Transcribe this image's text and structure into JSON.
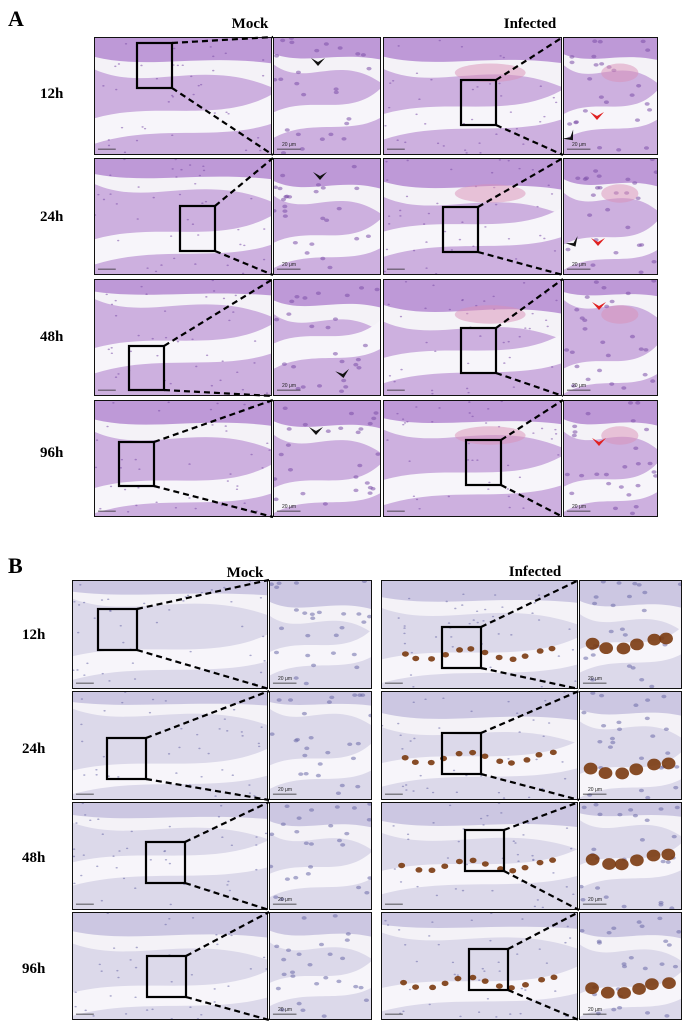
{
  "panels": [
    {
      "letter": "A",
      "stain": "he",
      "columns": [
        "Mock",
        "Infected"
      ],
      "rows": [
        "12h",
        "24h",
        "48h",
        "96h"
      ],
      "scale_label": "20 μm"
    },
    {
      "letter": "B",
      "stain": "ihc",
      "columns": [
        "Mock",
        "Infected"
      ],
      "rows": [
        "12h",
        "24h",
        "48h",
        "96h"
      ],
      "scale_label": "20 μm"
    }
  ],
  "colors": {
    "he_background": "#c9a8dc",
    "he_tissue": "#b48ad1",
    "he_dark": "#7b4fa8",
    "he_pink": "#d98fb8",
    "ihc_background": "#d9d6e8",
    "ihc_tissue": "#c4c0de",
    "ihc_nuclei": "#6c6aa8",
    "ihc_brown": "#7a3a10",
    "arrow_black": "#111111",
    "arrow_red": "#e02020"
  }
}
